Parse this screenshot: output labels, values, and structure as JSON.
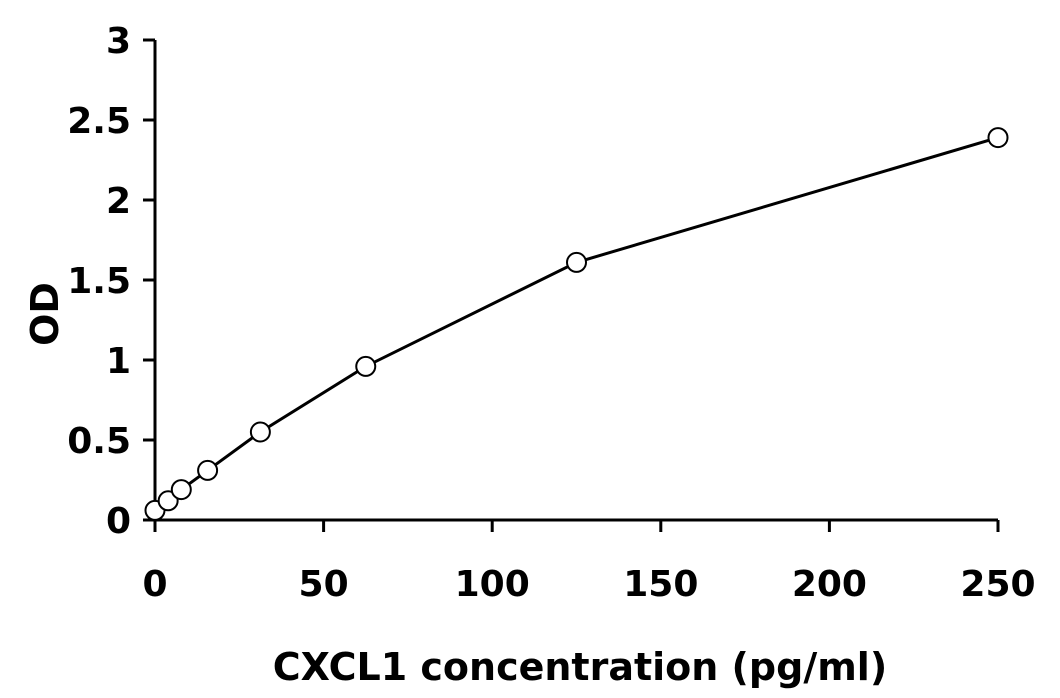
{
  "chart_data": {
    "type": "line",
    "title": "",
    "xlabel": "CXCL1 concentration (pg/ml)",
    "ylabel": "OD",
    "xlim": [
      0,
      250
    ],
    "ylim": [
      0,
      3
    ],
    "xticks": [
      0,
      50,
      100,
      150,
      200,
      250
    ],
    "yticks": [
      0,
      0.5,
      1,
      1.5,
      2,
      2.5,
      3
    ],
    "grid": false,
    "legend": "none",
    "series": [
      {
        "x": [
          0,
          3.9,
          7.8,
          15.6,
          31.25,
          62.5,
          125,
          250
        ],
        "y": [
          0.06,
          0.12,
          0.19,
          0.31,
          0.55,
          0.96,
          1.61,
          2.39
        ],
        "marker": "open-circle",
        "color": "#000000"
      }
    ]
  }
}
